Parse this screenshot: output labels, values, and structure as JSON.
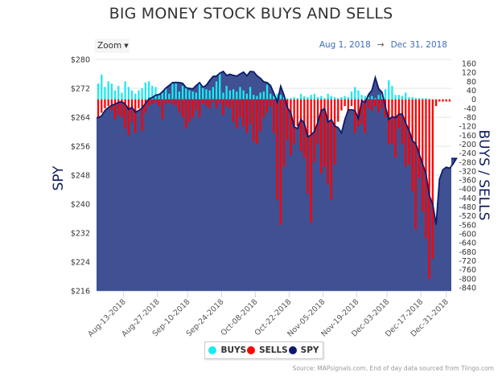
{
  "title": "BIG MONEY STOCK BUYS AND SELLS",
  "zoom_button": {
    "label": "Zoom",
    "icon": "caret-down-icon"
  },
  "date_range": {
    "from": "Aug 1, 2018",
    "arrow": "→",
    "to": "Dec 31, 2018"
  },
  "legend": [
    {
      "label": "BUYS",
      "color": "#1de9f0"
    },
    {
      "label": "SELLS",
      "color": "#ff0000"
    },
    {
      "label": "SPY",
      "color": "#0d1a6e"
    }
  ],
  "source": "Source: MAPsignals.com, End of day data sourced from Tiingo.com",
  "colors": {
    "buys": "#1de9f0",
    "sells": "#ff0000",
    "spy_line": "#0d1a6e",
    "spy_fill": "#3f5192",
    "grid": "#e6e6e6"
  },
  "chart_data": {
    "type": "bar+area",
    "title": "BIG MONEY STOCK BUYS AND SELLS",
    "y_left": {
      "label": "SPY",
      "min": 216,
      "max": 280,
      "ticks": [
        "$280",
        "$272",
        "$264",
        "$256",
        "$248",
        "$240",
        "$232",
        "$224",
        "$216"
      ]
    },
    "y_right": {
      "label": "BUYS / SELLS",
      "min": -840,
      "max": 160,
      "ticks": [
        "160",
        "120",
        "80",
        "40",
        "0",
        "-40",
        "-80",
        "-120",
        "-160",
        "-200",
        "-240",
        "-280",
        "-320",
        "-360",
        "-400",
        "-440",
        "-480",
        "-520",
        "-560",
        "-600",
        "-640",
        "-680",
        "-720",
        "-760",
        "-800",
        "-840"
      ]
    },
    "x_ticks": [
      "Aug-13-2018",
      "Aug-27-2018",
      "Sep-10-2018",
      "Sep-24-2018",
      "Oct-08-2018",
      "Oct-22-2018",
      "Nov-05-2018",
      "Nov-19-2018",
      "Dec-03-2018",
      "Dec-17-2018",
      "Dec-31-2018"
    ],
    "x_tick_days": [
      8,
      18,
      27,
      37,
      47,
      57,
      67,
      77,
      86,
      96,
      104
    ],
    "n_days": 105,
    "spy": [
      263.9,
      264.4,
      265.9,
      266.7,
      267.3,
      267.7,
      268.1,
      268.3,
      267.6,
      266.2,
      266.8,
      265.4,
      265.9,
      266.6,
      267.9,
      269.1,
      269.5,
      270.1,
      270.3,
      271.0,
      272.1,
      272.8,
      273.6,
      273.6,
      273.6,
      273.4,
      272.2,
      272.0,
      271.9,
      272.8,
      273.6,
      272.3,
      272.9,
      274.2,
      275.3,
      275.4,
      276.2,
      276.7,
      275.6,
      275.9,
      275.6,
      275.4,
      276.0,
      276.5,
      275.5,
      276.7,
      276.6,
      275.5,
      274.8,
      273.8,
      273.6,
      272.8,
      270.6,
      268.2,
      272.6,
      270.1,
      266.7,
      265.2,
      261.3,
      260.9,
      263.4,
      262.4,
      258.6,
      259.1,
      260.1,
      262.7,
      265.9,
      266.4,
      262.7,
      263.3,
      261.6,
      261.1,
      259.7,
      263.4,
      266.0,
      266.1,
      265.8,
      263.6,
      268.6,
      268.1,
      270.3,
      271.5,
      275.0,
      271.9,
      270.9,
      266.9,
      263.4,
      264.2,
      263.9,
      264.9,
      264.9,
      262.4,
      260.4,
      257.5,
      256.7,
      253.8,
      251.1,
      248.4,
      242.3,
      240.0,
      234.3,
      246.9,
      249.5,
      250.2,
      249.9,
      251.1,
      252.6
    ],
    "buys": [
      70,
      110,
      55,
      80,
      70,
      40,
      60,
      30,
      80,
      55,
      40,
      25,
      40,
      50,
      75,
      80,
      60,
      55,
      20,
      40,
      50,
      25,
      70,
      80,
      35,
      60,
      55,
      40,
      35,
      30,
      70,
      55,
      45,
      40,
      55,
      80,
      120,
      30,
      60,
      40,
      45,
      35,
      55,
      40,
      25,
      55,
      20,
      15,
      30,
      35,
      65,
      25,
      15,
      25,
      20,
      10,
      5,
      5,
      10,
      5,
      25,
      15,
      10,
      20,
      25,
      10,
      15,
      5,
      25,
      15,
      10,
      5,
      10,
      15,
      10,
      35,
      55,
      40,
      20,
      15,
      10,
      15,
      5,
      20,
      25,
      45,
      85,
      60,
      20,
      20,
      15,
      30,
      10,
      10,
      5,
      5,
      5,
      5,
      3,
      0,
      0,
      0,
      0,
      0,
      0
    ],
    "buys_note": "buys are positive daily counts; sells are negative daily counts",
    "sells": [
      -80,
      -60,
      -40,
      -30,
      -50,
      -90,
      -70,
      -80,
      -130,
      -160,
      -100,
      -150,
      -40,
      -140,
      -60,
      -30,
      -20,
      -15,
      -30,
      -90,
      -20,
      -15,
      -20,
      -30,
      -60,
      -80,
      -130,
      -100,
      -80,
      -50,
      -80,
      -20,
      -30,
      -40,
      -10,
      -40,
      -15,
      -70,
      -30,
      -40,
      -100,
      -130,
      -80,
      -120,
      -150,
      -110,
      -190,
      -200,
      -140,
      -80,
      -60,
      -30,
      -150,
      -450,
      -560,
      -300,
      -180,
      -250,
      -200,
      -120,
      -230,
      -260,
      -420,
      -550,
      -280,
      -200,
      -330,
      -300,
      -380,
      -450,
      -290,
      -100,
      -50,
      -30,
      -60,
      -30,
      -150,
      -120,
      -110,
      -150,
      -40,
      -50,
      -30,
      -60,
      -40,
      -80,
      -200,
      -200,
      -260,
      -130,
      -200,
      -300,
      -290,
      -410,
      -580,
      -350,
      -500,
      -620,
      -800,
      -710,
      -30,
      -10,
      -10,
      -10,
      -10
    ]
  }
}
